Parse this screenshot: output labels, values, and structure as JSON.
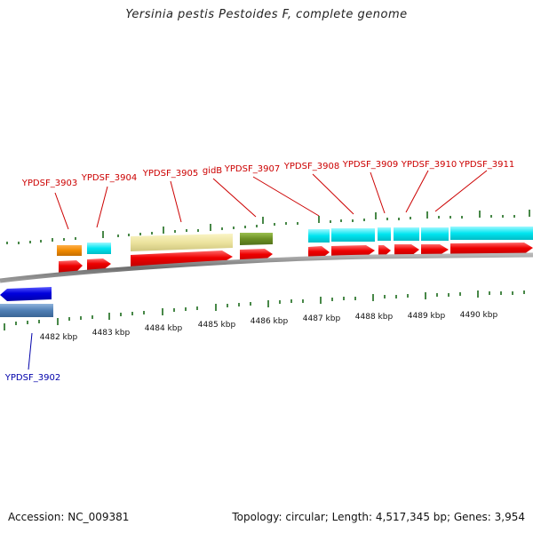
{
  "title": "Yersinia pestis Pestoides F, complete genome",
  "footer": {
    "accession": "Accession: NC_009381",
    "topology": "Topology: circular; Length: 4,517,345 bp; Genes: 3,954"
  },
  "scale_labels": [
    "4482 kbp",
    "4483 kbp",
    "4484 kbp",
    "4485 kbp",
    "4486 kbp",
    "4487 kbp",
    "4488 kbp",
    "4489 kbp",
    "4490 kbp"
  ],
  "gene_labels": {
    "ypdsf_3902": "YPDSF_3902",
    "ypdsf_3903": "YPDSF_3903",
    "ypdsf_3904": "YPDSF_3904",
    "ypdsf_3905": "YPDSF_3905",
    "gidb": "gidB",
    "ypdsf_3907": "YPDSF_3907",
    "ypdsf_3908": "YPDSF_3908",
    "ypdsf_3909": "YPDSF_3909",
    "ypdsf_3910": "YPDSF_3910",
    "ypdsf_3911": "YPDSF_3911"
  },
  "colors": {
    "forward_label": "#cc0000",
    "reverse_label": "#0000aa",
    "tick": "#1a6b1a",
    "red_gene": "#ee0000",
    "blue_gene": "#0000dd",
    "steel_gene": "#4f7fb5",
    "orange_gene": "#f08a00",
    "cyan_gene": "#00e5f0",
    "khaki_gene": "#ece39e",
    "olive_gene": "#6b8e23",
    "backbone": "#7a7a7a"
  }
}
